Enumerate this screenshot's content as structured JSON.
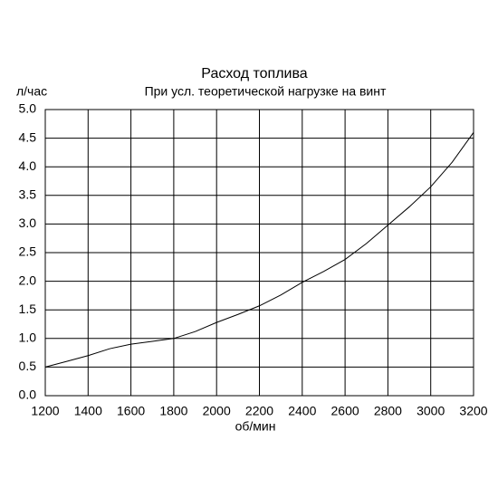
{
  "chart_data": {
    "type": "line",
    "title": "Расход топлива",
    "subtitle": "При усл. теоретической нагрузке на винт",
    "y_label": "л/час",
    "x_label": "об/мин",
    "x": [
      1200,
      1300,
      1400,
      1500,
      1600,
      1700,
      1800,
      1900,
      2000,
      2100,
      2200,
      2300,
      2400,
      2500,
      2600,
      2700,
      2800,
      2900,
      3000,
      3100,
      3200
    ],
    "series": [
      {
        "color": "#000000",
        "values": [
          0.5,
          0.6,
          0.7,
          0.82,
          0.9,
          0.95,
          1.0,
          1.12,
          1.28,
          1.42,
          1.57,
          1.76,
          1.98,
          2.17,
          2.38,
          2.66,
          2.98,
          3.3,
          3.65,
          4.08,
          4.6
        ]
      }
    ],
    "xlim": [
      1200,
      3200
    ],
    "xticks": [
      1200,
      1400,
      1600,
      1800,
      2000,
      2200,
      2400,
      2600,
      2800,
      3000,
      3200
    ],
    "ylim": [
      0,
      5
    ],
    "yticks": [
      {
        "value": 0,
        "label": "0.0"
      },
      0.5,
      {
        "value": 1,
        "label": "1.0"
      },
      1.5,
      {
        "value": 2,
        "label": "2.0"
      },
      2.5,
      {
        "value": 3,
        "label": "3.0"
      },
      3.5,
      {
        "value": 4,
        "label": "4.0"
      },
      4.5,
      {
        "value": 5,
        "label": "5.0"
      }
    ],
    "grid": true
  }
}
